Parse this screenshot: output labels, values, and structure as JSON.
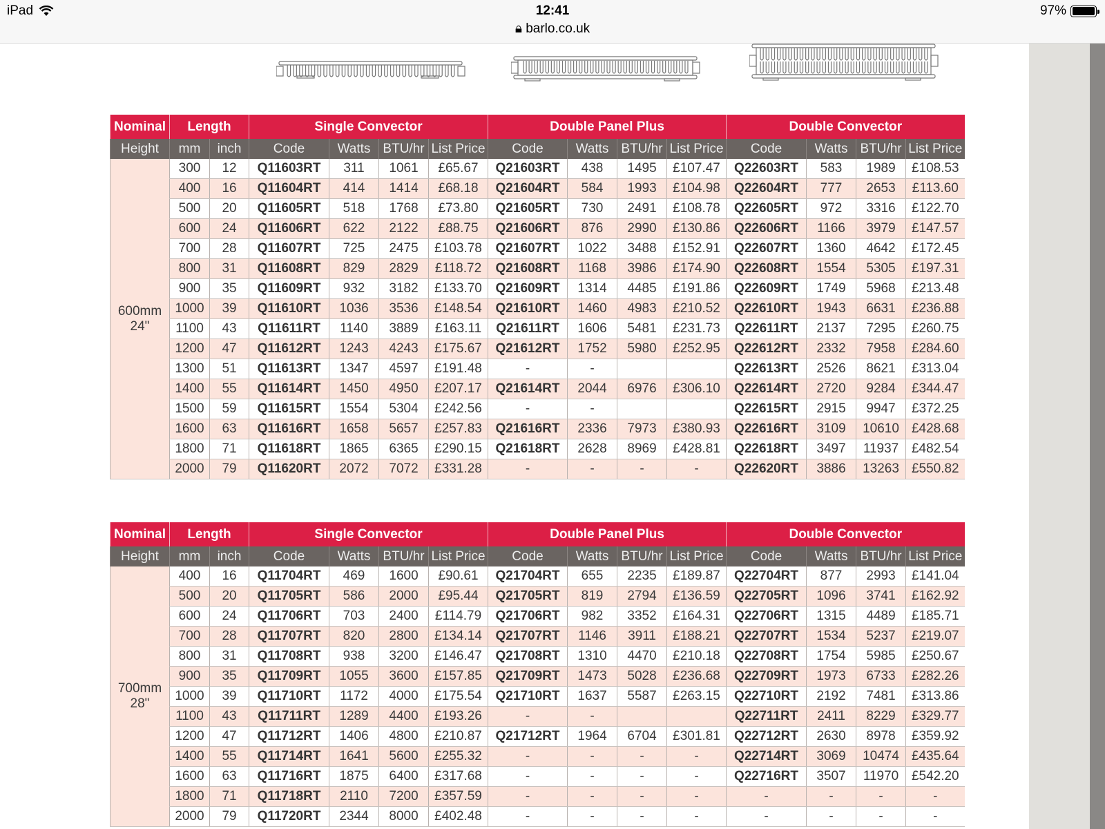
{
  "status_bar": {
    "device": "iPad",
    "time": "12:41",
    "url": "barlo.co.uk",
    "battery": "97%",
    "battery_level": 0.97
  },
  "colors": {
    "header_red": "#dc1f46",
    "subheader_gray": "#6a6461",
    "stripe_pink": "#fce4dc"
  },
  "drawings": [
    "single-convector-icon",
    "double-panel-plus-icon",
    "double-convector-icon"
  ],
  "header": {
    "groups": [
      "Nominal",
      "Length",
      "Single Convector",
      "Double Panel Plus",
      "Double Convector"
    ],
    "columns": [
      "Height",
      "mm",
      "inch",
      "Code",
      "Watts",
      "BTU/hr",
      "List Price",
      "Code",
      "Watts",
      "BTU/hr",
      "List Price",
      "Code",
      "Watts",
      "BTU/hr",
      "List Price"
    ]
  },
  "tables": [
    {
      "nominal_mm": "600mm",
      "nominal_inch": "24\"",
      "rows": [
        [
          "300",
          "12",
          "Q11603RT",
          "311",
          "1061",
          "£65.67",
          "Q21603RT",
          "438",
          "1495",
          "£107.47",
          "Q22603RT",
          "583",
          "1989",
          "£108.53"
        ],
        [
          "400",
          "16",
          "Q11604RT",
          "414",
          "1414",
          "£68.18",
          "Q21604RT",
          "584",
          "1993",
          "£104.98",
          "Q22604RT",
          "777",
          "2653",
          "£113.60"
        ],
        [
          "500",
          "20",
          "Q11605RT",
          "518",
          "1768",
          "£73.80",
          "Q21605RT",
          "730",
          "2491",
          "£108.78",
          "Q22605RT",
          "972",
          "3316",
          "£122.70"
        ],
        [
          "600",
          "24",
          "Q11606RT",
          "622",
          "2122",
          "£88.75",
          "Q21606RT",
          "876",
          "2990",
          "£130.86",
          "Q22606RT",
          "1166",
          "3979",
          "£147.57"
        ],
        [
          "700",
          "28",
          "Q11607RT",
          "725",
          "2475",
          "£103.78",
          "Q21607RT",
          "1022",
          "3488",
          "£152.91",
          "Q22607RT",
          "1360",
          "4642",
          "£172.45"
        ],
        [
          "800",
          "31",
          "Q11608RT",
          "829",
          "2829",
          "£118.72",
          "Q21608RT",
          "1168",
          "3986",
          "£174.90",
          "Q22608RT",
          "1554",
          "5305",
          "£197.31"
        ],
        [
          "900",
          "35",
          "Q11609RT",
          "932",
          "3182",
          "£133.70",
          "Q21609RT",
          "1314",
          "4485",
          "£191.86",
          "Q22609RT",
          "1749",
          "5968",
          "£213.48"
        ],
        [
          "1000",
          "39",
          "Q11610RT",
          "1036",
          "3536",
          "£148.54",
          "Q21610RT",
          "1460",
          "4983",
          "£210.52",
          "Q22610RT",
          "1943",
          "6631",
          "£236.88"
        ],
        [
          "1100",
          "43",
          "Q11611RT",
          "1140",
          "3889",
          "£163.11",
          "Q21611RT",
          "1606",
          "5481",
          "£231.73",
          "Q22611RT",
          "2137",
          "7295",
          "£260.75"
        ],
        [
          "1200",
          "47",
          "Q11612RT",
          "1243",
          "4243",
          "£175.67",
          "Q21612RT",
          "1752",
          "5980",
          "£252.95",
          "Q22612RT",
          "2332",
          "7958",
          "£284.60"
        ],
        [
          "1300",
          "51",
          "Q11613RT",
          "1347",
          "4597",
          "£191.48",
          "-",
          "-",
          "",
          "",
          "Q22613RT",
          "2526",
          "8621",
          "£313.04"
        ],
        [
          "1400",
          "55",
          "Q11614RT",
          "1450",
          "4950",
          "£207.17",
          "Q21614RT",
          "2044",
          "6976",
          "£306.10",
          "Q22614RT",
          "2720",
          "9284",
          "£344.47"
        ],
        [
          "1500",
          "59",
          "Q11615RT",
          "1554",
          "5304",
          "£242.56",
          "-",
          "-",
          "",
          "",
          "Q22615RT",
          "2915",
          "9947",
          "£372.25"
        ],
        [
          "1600",
          "63",
          "Q11616RT",
          "1658",
          "5657",
          "£257.83",
          "Q21616RT",
          "2336",
          "7973",
          "£380.93",
          "Q22616RT",
          "3109",
          "10610",
          "£428.68"
        ],
        [
          "1800",
          "71",
          "Q11618RT",
          "1865",
          "6365",
          "£290.15",
          "Q21618RT",
          "2628",
          "8969",
          "£428.81",
          "Q22618RT",
          "3497",
          "11937",
          "£482.54"
        ],
        [
          "2000",
          "79",
          "Q11620RT",
          "2072",
          "7072",
          "£331.28",
          "-",
          "-",
          "-",
          "-",
          "Q22620RT",
          "3886",
          "13263",
          "£550.82"
        ]
      ]
    },
    {
      "nominal_mm": "700mm",
      "nominal_inch": "28\"",
      "rows": [
        [
          "400",
          "16",
          "Q11704RT",
          "469",
          "1600",
          "£90.61",
          "Q21704RT",
          "655",
          "2235",
          "£189.87",
          "Q22704RT",
          "877",
          "2993",
          "£141.04"
        ],
        [
          "500",
          "20",
          "Q11705RT",
          "586",
          "2000",
          "£95.44",
          "Q21705RT",
          "819",
          "2794",
          "£136.59",
          "Q22705RT",
          "1096",
          "3741",
          "£162.92"
        ],
        [
          "600",
          "24",
          "Q11706RT",
          "703",
          "2400",
          "£114.79",
          "Q21706RT",
          "982",
          "3352",
          "£164.31",
          "Q22706RT",
          "1315",
          "4489",
          "£185.71"
        ],
        [
          "700",
          "28",
          "Q11707RT",
          "820",
          "2800",
          "£134.14",
          "Q21707RT",
          "1146",
          "3911",
          "£188.21",
          "Q22707RT",
          "1534",
          "5237",
          "£219.07"
        ],
        [
          "800",
          "31",
          "Q11708RT",
          "938",
          "3200",
          "£146.47",
          "Q21708RT",
          "1310",
          "4470",
          "£210.18",
          "Q22708RT",
          "1754",
          "5985",
          "£250.67"
        ],
        [
          "900",
          "35",
          "Q11709RT",
          "1055",
          "3600",
          "£157.85",
          "Q21709RT",
          "1473",
          "5028",
          "£236.68",
          "Q22709RT",
          "1973",
          "6733",
          "£282.26"
        ],
        [
          "1000",
          "39",
          "Q11710RT",
          "1172",
          "4000",
          "£175.54",
          "Q21710RT",
          "1637",
          "5587",
          "£263.15",
          "Q22710RT",
          "2192",
          "7481",
          "£313.86"
        ],
        [
          "1100",
          "43",
          "Q11711RT",
          "1289",
          "4400",
          "£193.26",
          "-",
          "-",
          "",
          "",
          "Q22711RT",
          "2411",
          "8229",
          "£329.77"
        ],
        [
          "1200",
          "47",
          "Q11712RT",
          "1406",
          "4800",
          "£210.87",
          "Q21712RT",
          "1964",
          "6704",
          "£301.81",
          "Q22712RT",
          "2630",
          "8978",
          "£359.92"
        ],
        [
          "1400",
          "55",
          "Q11714RT",
          "1641",
          "5600",
          "£255.32",
          "-",
          "-",
          "-",
          "-",
          "Q22714RT",
          "3069",
          "10474",
          "£435.64"
        ],
        [
          "1600",
          "63",
          "Q11716RT",
          "1875",
          "6400",
          "£317.68",
          "-",
          "-",
          "-",
          "-",
          "Q22716RT",
          "3507",
          "11970",
          "£542.20"
        ],
        [
          "1800",
          "71",
          "Q11718RT",
          "2110",
          "7200",
          "£357.59",
          "-",
          "-",
          "-",
          "-",
          "-",
          "-",
          "-",
          "-"
        ],
        [
          "2000",
          "79",
          "Q11720RT",
          "2344",
          "8000",
          "£402.48",
          "-",
          "-",
          "-",
          "-",
          "-",
          "-",
          "-",
          "-"
        ]
      ]
    }
  ]
}
